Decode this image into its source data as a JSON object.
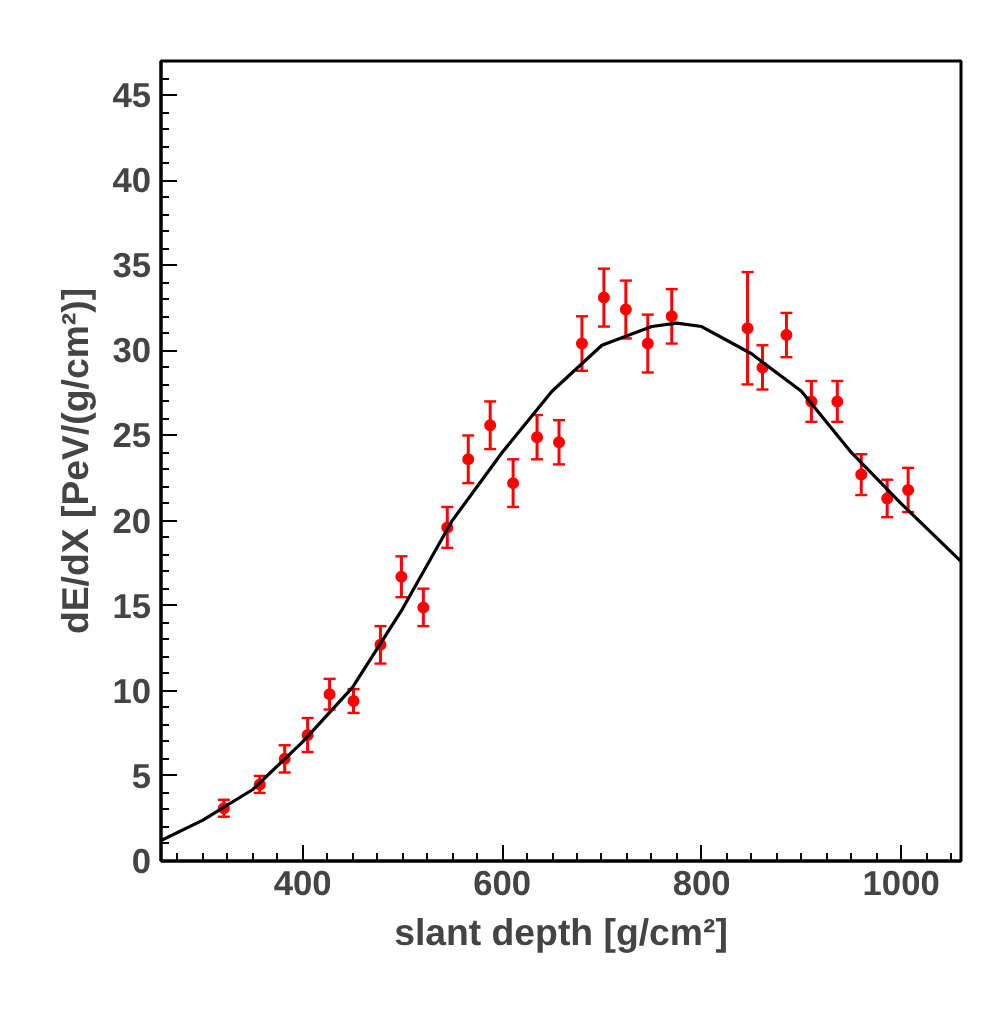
{
  "chart_data": {
    "type": "scatter",
    "xlabel": "slant depth [g/cm²]",
    "ylabel": "dE/dX [PeV/(g/cm²)]",
    "xlim": [
      258,
      1060
    ],
    "ylim": [
      0,
      47
    ],
    "xticks": [
      400,
      600,
      800,
      1000
    ],
    "yticks": [
      0,
      5,
      10,
      15,
      20,
      25,
      30,
      35,
      40,
      45
    ],
    "grid": false,
    "series": [
      {
        "marker": "circle",
        "color": "#ff0000",
        "x": [
          321,
          357,
          382,
          405,
          427,
          451,
          478,
          499,
          521,
          545,
          566,
          588,
          611,
          635,
          657,
          680,
          702,
          724,
          746,
          770,
          846,
          861,
          885,
          910,
          936,
          960,
          986,
          1007
        ],
        "values": [
          3.1,
          4.5,
          6.0,
          7.4,
          9.8,
          9.4,
          12.7,
          16.7,
          14.9,
          19.6,
          23.6,
          25.6,
          22.2,
          24.9,
          24.6,
          30.4,
          33.1,
          32.4,
          30.4,
          32.0,
          31.3,
          29.0,
          30.9,
          27.0,
          27.0,
          22.7,
          21.3,
          21.8
        ],
        "errors": [
          0.5,
          0.5,
          0.8,
          1.0,
          0.9,
          0.7,
          1.1,
          1.2,
          1.1,
          1.2,
          1.4,
          1.4,
          1.4,
          1.3,
          1.3,
          1.6,
          1.7,
          1.7,
          1.7,
          1.6,
          3.3,
          1.3,
          1.3,
          1.2,
          1.2,
          1.2,
          1.1,
          1.3
        ]
      },
      {
        "type": "line",
        "color": "#000000",
        "x": [
          258,
          300,
          350,
          400,
          450,
          500,
          550,
          600,
          650,
          700,
          750,
          775,
          800,
          850,
          900,
          950,
          1000,
          1060
        ],
        "values": [
          1.2,
          2.4,
          4.2,
          7.0,
          10.2,
          14.8,
          20.0,
          24.0,
          27.6,
          30.3,
          31.4,
          31.6,
          31.4,
          29.8,
          27.6,
          24.0,
          21.0,
          17.6
        ]
      }
    ]
  }
}
